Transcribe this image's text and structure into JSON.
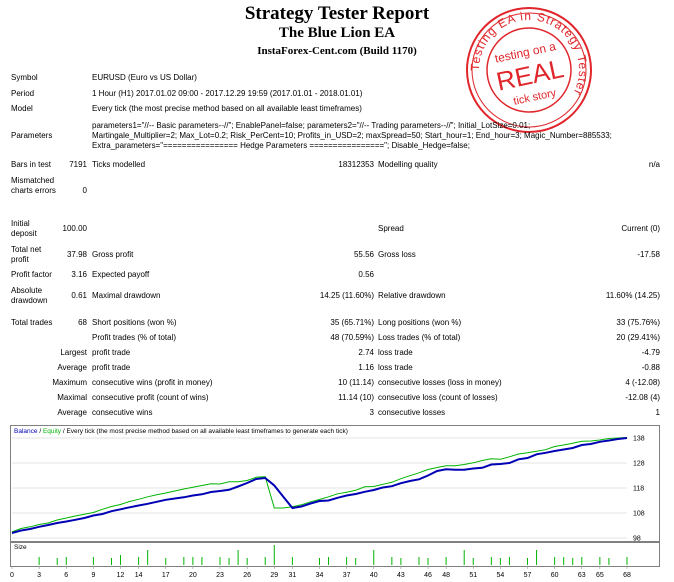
{
  "title": "Strategy Tester Report",
  "ea_name": "The Blue Lion EA",
  "broker": "InstaForex-Cent.com (Build 1170)",
  "stamp": {
    "ring_text": "Testing EA in Strategy Tester",
    "line1": "testing on a",
    "line2": "REAL",
    "line3": "tick story",
    "color": "#e0262b"
  },
  "info": {
    "symbol_label": "Symbol",
    "symbol": "EURUSD (Euro vs US Dollar)",
    "period_label": "Period",
    "period": "1 Hour (H1) 2017.01.02 09:00 - 2017.12.29 19:59 (2017.01.01 - 2018.01.01)",
    "model_label": "Model",
    "model": "Every tick (the most precise method based on all available least timeframes)",
    "params_label": "Parameters",
    "params_1": "parameters1=\"//-- Basic parameters--//\"; EnablePanel=false; parameters2=\"//-- Trading parameters--//\"; Initial_LotSize=0.01;",
    "params_2": "Martingale_Multiplier=2; Max_Lot=0.2; Risk_PerCent=10; Profits_in_USD=2; maxSpread=50; Start_hour=1; End_hour=3; Magic_Number=885533;",
    "params_3": "Extra_parameters=\"================ Hedge Parameters ================\"; Disable_Hedge=false;"
  },
  "stats": {
    "bars_label": "Bars in test",
    "bars": "7191",
    "ticks_label": "Ticks modelled",
    "ticks": "18312353",
    "mq_label": "Modelling quality",
    "mq": "n/a",
    "mismatch_label": "Mismatched charts errors",
    "mismatch": "0",
    "deposit_label": "Initial deposit",
    "deposit": "100.00",
    "spread_label": "Spread",
    "spread": "Current (0)",
    "net_label": "Total net profit",
    "net": "37.98",
    "gp_label": "Gross profit",
    "gp": "55.56",
    "gl_label": "Gross loss",
    "gl": "-17.58",
    "pf_label": "Profit factor",
    "pf": "3.16",
    "ep_label": "Expected payoff",
    "ep": "0.56",
    "ad_label": "Absolute drawdown",
    "ad": "0.61",
    "md_label": "Maximal drawdown",
    "md": "14.25 (11.60%)",
    "rd_label": "Relative drawdown",
    "rd": "11.60% (14.25)",
    "tt_label": "Total trades",
    "tt": "68",
    "sp_label": "Short positions (won %)",
    "sp": "35 (65.71%)",
    "lp_label": "Long positions (won %)",
    "lp": "33 (75.76%)",
    "pt_label": "Profit trades (% of total)",
    "pt": "48 (70.59%)",
    "lt_label": "Loss trades (% of total)",
    "lt": "20 (29.41%)",
    "largest": "Largest",
    "lpt_label": "profit trade",
    "lpt": "2.74",
    "llt_label": "loss trade",
    "llt": "-4.79",
    "average": "Average",
    "apt_label": "profit trade",
    "apt": "1.16",
    "alt_label": "loss trade",
    "alt": "-0.88",
    "maximum": "Maximum",
    "mcw_label": "consecutive wins (profit in money)",
    "mcw": "10 (11.14)",
    "mcl_label": "consecutive losses (loss in money)",
    "mcl": "4 (-12.08)",
    "maximal": "Maximal",
    "mcp_label": "consecutive profit (count of wins)",
    "mcp": "11.14 (10)",
    "mclc_label": "consecutive loss (count of losses)",
    "mclc": "-12.08 (4)",
    "average2": "Average",
    "acw_label": "consecutive wins",
    "acw": "3",
    "acl_label": "consecutive losses",
    "acl": "1"
  },
  "chart_data": {
    "type": "line",
    "legend_balance": "Balance",
    "legend_equity": "Equity",
    "legend_rest": " / Every tick (the most precise method based on all available least timeframes to generate each tick)",
    "size_label": "Size",
    "yticks": [
      98,
      108,
      118,
      128,
      138
    ],
    "ylim": [
      98,
      140
    ],
    "xlim": [
      0,
      68
    ],
    "xticks": [
      0,
      3,
      6,
      9,
      12,
      14,
      17,
      20,
      23,
      26,
      29,
      31,
      34,
      37,
      40,
      43,
      46,
      48,
      51,
      54,
      57,
      60,
      63,
      65,
      68
    ],
    "colors": {
      "balance": "#0000b4",
      "equity": "#00b400",
      "size": "#00b400",
      "grid": "#c8c8c8"
    },
    "balance": [
      [
        0,
        100.0
      ],
      [
        1,
        101.0
      ],
      [
        2,
        101.6
      ],
      [
        3,
        102.5
      ],
      [
        4,
        103.2
      ],
      [
        5,
        104.0
      ],
      [
        6,
        104.6
      ],
      [
        7,
        105.3
      ],
      [
        8,
        106.0
      ],
      [
        9,
        107.0
      ],
      [
        10,
        107.6
      ],
      [
        11,
        108.7
      ],
      [
        12,
        109.5
      ],
      [
        13,
        110.3
      ],
      [
        14,
        111.0
      ],
      [
        15,
        111.7
      ],
      [
        16,
        112.5
      ],
      [
        17,
        113.3
      ],
      [
        18,
        113.8
      ],
      [
        19,
        114.3
      ],
      [
        20,
        115.0
      ],
      [
        21,
        115.5
      ],
      [
        22,
        116.4
      ],
      [
        23,
        116.8
      ],
      [
        24,
        117.3
      ],
      [
        25,
        118.6
      ],
      [
        26,
        120.0
      ],
      [
        27,
        121.6
      ],
      [
        28,
        122.0
      ],
      [
        29,
        119.0
      ],
      [
        30,
        114.5
      ],
      [
        31,
        110.0
      ],
      [
        32,
        110.6
      ],
      [
        33,
        111.8
      ],
      [
        34,
        112.8
      ],
      [
        35,
        113.0
      ],
      [
        36,
        114.1
      ],
      [
        37,
        115.0
      ],
      [
        38,
        115.6
      ],
      [
        39,
        116.5
      ],
      [
        40,
        117.2
      ],
      [
        41,
        118.2
      ],
      [
        42,
        118.7
      ],
      [
        43,
        119.9
      ],
      [
        44,
        120.8
      ],
      [
        45,
        121.5
      ],
      [
        46,
        123.0
      ],
      [
        47,
        124.8
      ],
      [
        48,
        125.5
      ],
      [
        49,
        125.3
      ],
      [
        50,
        125.3
      ],
      [
        51,
        125.8
      ],
      [
        52,
        126.1
      ],
      [
        53,
        127.4
      ],
      [
        54,
        127.6
      ],
      [
        55,
        128.0
      ],
      [
        56,
        129.5
      ],
      [
        57,
        130.0
      ],
      [
        58,
        131.5
      ],
      [
        59,
        132.1
      ],
      [
        60,
        132.8
      ],
      [
        61,
        133.4
      ],
      [
        62,
        134.0
      ],
      [
        63,
        135.2
      ],
      [
        64,
        135.6
      ],
      [
        65,
        136.5
      ],
      [
        66,
        137.0
      ],
      [
        67,
        137.6
      ],
      [
        68,
        138.0
      ]
    ],
    "equity": [
      [
        0,
        100.5
      ],
      [
        1,
        101.8
      ],
      [
        2,
        102.5
      ],
      [
        3,
        103.4
      ],
      [
        4,
        104.0
      ],
      [
        5,
        105.2
      ],
      [
        6,
        106.0
      ],
      [
        7,
        106.8
      ],
      [
        8,
        107.5
      ],
      [
        9,
        108.2
      ],
      [
        10,
        109.5
      ],
      [
        11,
        110.6
      ],
      [
        12,
        111.4
      ],
      [
        13,
        112.6
      ],
      [
        14,
        113.5
      ],
      [
        15,
        114.5
      ],
      [
        16,
        115.3
      ],
      [
        17,
        116.0
      ],
      [
        18,
        116.8
      ],
      [
        19,
        117.6
      ],
      [
        20,
        118.3
      ],
      [
        21,
        119.0
      ],
      [
        22,
        119.7
      ],
      [
        23,
        119.6
      ],
      [
        24,
        120.5
      ],
      [
        25,
        120.5
      ],
      [
        26,
        121.0
      ],
      [
        27,
        122.3
      ],
      [
        28,
        122.5
      ],
      [
        29,
        110.0
      ],
      [
        30,
        110.0
      ],
      [
        31,
        110.5
      ],
      [
        32,
        111.3
      ],
      [
        33,
        112.5
      ],
      [
        34,
        113.4
      ],
      [
        35,
        114.5
      ],
      [
        36,
        115.7
      ],
      [
        37,
        116.3
      ],
      [
        38,
        117.1
      ],
      [
        39,
        118.5
      ],
      [
        40,
        118.6
      ],
      [
        41,
        119.5
      ],
      [
        42,
        120.3
      ],
      [
        43,
        121.7
      ],
      [
        44,
        122.9
      ],
      [
        45,
        124.1
      ],
      [
        46,
        125.4
      ],
      [
        47,
        126.2
      ],
      [
        48,
        126.9
      ],
      [
        49,
        126.9
      ],
      [
        50,
        127.4
      ],
      [
        51,
        128.1
      ],
      [
        52,
        129.0
      ],
      [
        53,
        129.7
      ],
      [
        54,
        129.5
      ],
      [
        55,
        130.5
      ],
      [
        56,
        131.6
      ],
      [
        57,
        132.1
      ],
      [
        58,
        132.7
      ],
      [
        59,
        133.3
      ],
      [
        60,
        134.6
      ],
      [
        61,
        135.2
      ],
      [
        62,
        135.9
      ],
      [
        63,
        136.7
      ],
      [
        64,
        136.8
      ],
      [
        65,
        137.2
      ],
      [
        66,
        137.8
      ],
      [
        67,
        138.0
      ],
      [
        68,
        138.2
      ]
    ],
    "size_bars": [
      {
        "x": 3,
        "h": 0.4
      },
      {
        "x": 5,
        "h": 0.35
      },
      {
        "x": 6,
        "h": 0.4
      },
      {
        "x": 9,
        "h": 0.4
      },
      {
        "x": 11,
        "h": 0.35
      },
      {
        "x": 12,
        "h": 0.5
      },
      {
        "x": 14,
        "h": 0.4
      },
      {
        "x": 15,
        "h": 0.75
      },
      {
        "x": 17,
        "h": 0.35
      },
      {
        "x": 19,
        "h": 0.4
      },
      {
        "x": 20,
        "h": 0.4
      },
      {
        "x": 21,
        "h": 0.4
      },
      {
        "x": 23,
        "h": 0.4
      },
      {
        "x": 24,
        "h": 0.35
      },
      {
        "x": 25,
        "h": 0.75
      },
      {
        "x": 26,
        "h": 0.35
      },
      {
        "x": 28,
        "h": 0.4
      },
      {
        "x": 29,
        "h": 1.0
      },
      {
        "x": 31,
        "h": 0.4
      },
      {
        "x": 34,
        "h": 0.35
      },
      {
        "x": 35,
        "h": 0.4
      },
      {
        "x": 37,
        "h": 0.4
      },
      {
        "x": 38,
        "h": 0.35
      },
      {
        "x": 40,
        "h": 0.75
      },
      {
        "x": 42,
        "h": 0.4
      },
      {
        "x": 43,
        "h": 0.35
      },
      {
        "x": 45,
        "h": 0.4
      },
      {
        "x": 46,
        "h": 0.35
      },
      {
        "x": 48,
        "h": 0.4
      },
      {
        "x": 50,
        "h": 0.75
      },
      {
        "x": 51,
        "h": 0.35
      },
      {
        "x": 53,
        "h": 0.4
      },
      {
        "x": 54,
        "h": 0.35
      },
      {
        "x": 55,
        "h": 0.4
      },
      {
        "x": 57,
        "h": 0.35
      },
      {
        "x": 58,
        "h": 0.75
      },
      {
        "x": 60,
        "h": 0.4
      },
      {
        "x": 61,
        "h": 0.4
      },
      {
        "x": 62,
        "h": 0.35
      },
      {
        "x": 63,
        "h": 0.4
      },
      {
        "x": 65,
        "h": 0.4
      },
      {
        "x": 66,
        "h": 0.35
      },
      {
        "x": 68,
        "h": 0.4
      }
    ]
  }
}
